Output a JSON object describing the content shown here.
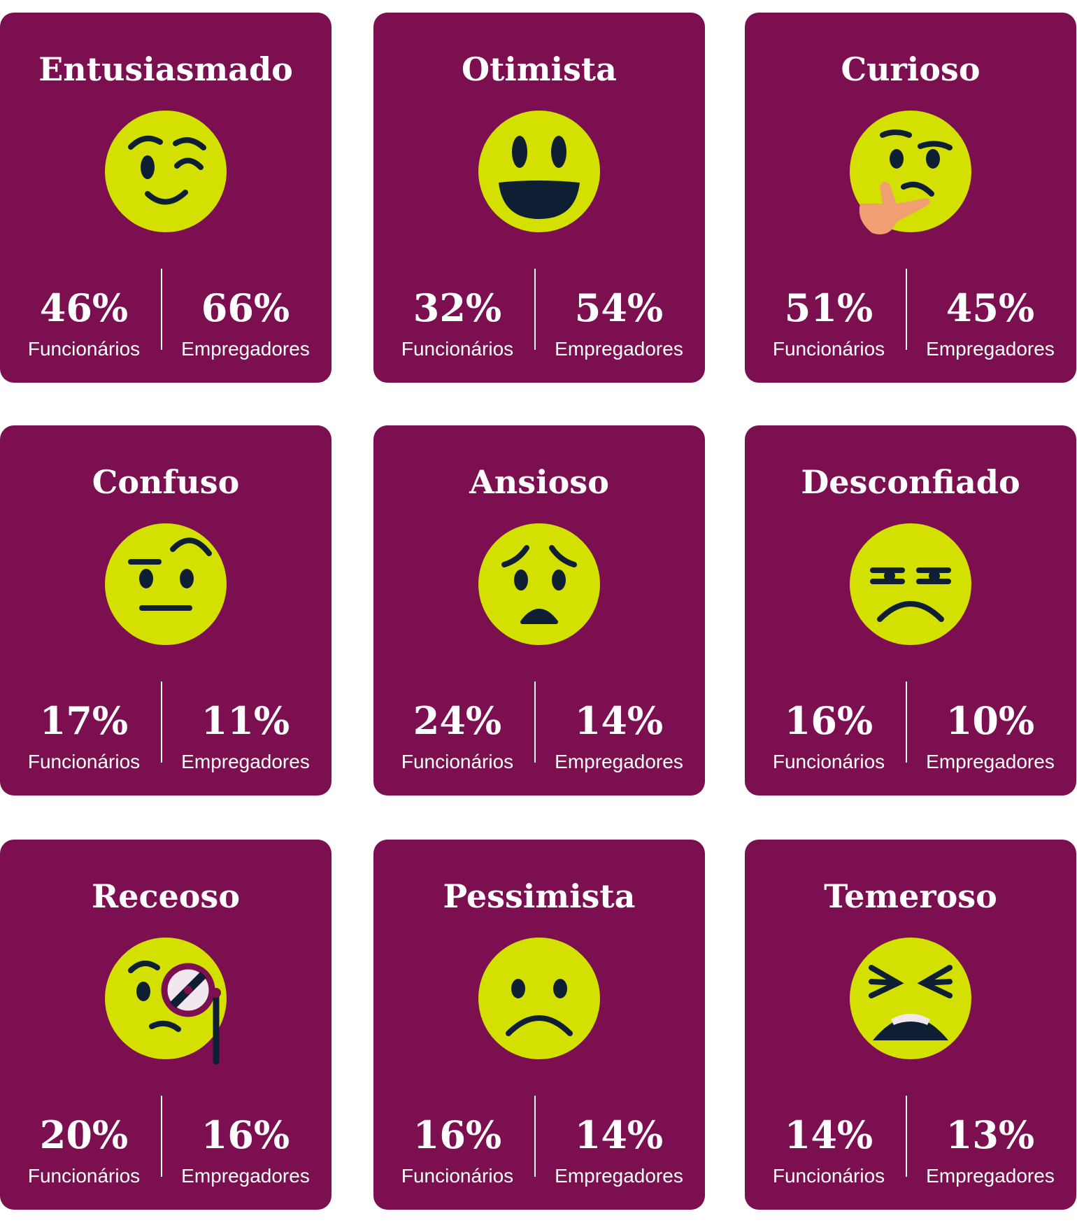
{
  "labels": {
    "employees": "Funcionários",
    "employers": "Empregadores"
  },
  "cards": [
    {
      "title": "Entusiasmado",
      "employees": "46%",
      "employers": "66%"
    },
    {
      "title": "Otimista",
      "employees": "32%",
      "employers": "54%"
    },
    {
      "title": "Curioso",
      "employees": "51%",
      "employers": "45%"
    },
    {
      "title": "Confuso",
      "employees": "17%",
      "employers": "11%"
    },
    {
      "title": "Ansioso",
      "employees": "24%",
      "employers": "14%"
    },
    {
      "title": "Desconfiado",
      "employees": "16%",
      "employers": "10%"
    },
    {
      "title": "Receoso",
      "employees": "20%",
      "employers": "16%"
    },
    {
      "title": "Pessimista",
      "employees": "16%",
      "employers": "14%"
    },
    {
      "title": "Temeroso",
      "employees": "14%",
      "employers": "13%"
    }
  ]
}
